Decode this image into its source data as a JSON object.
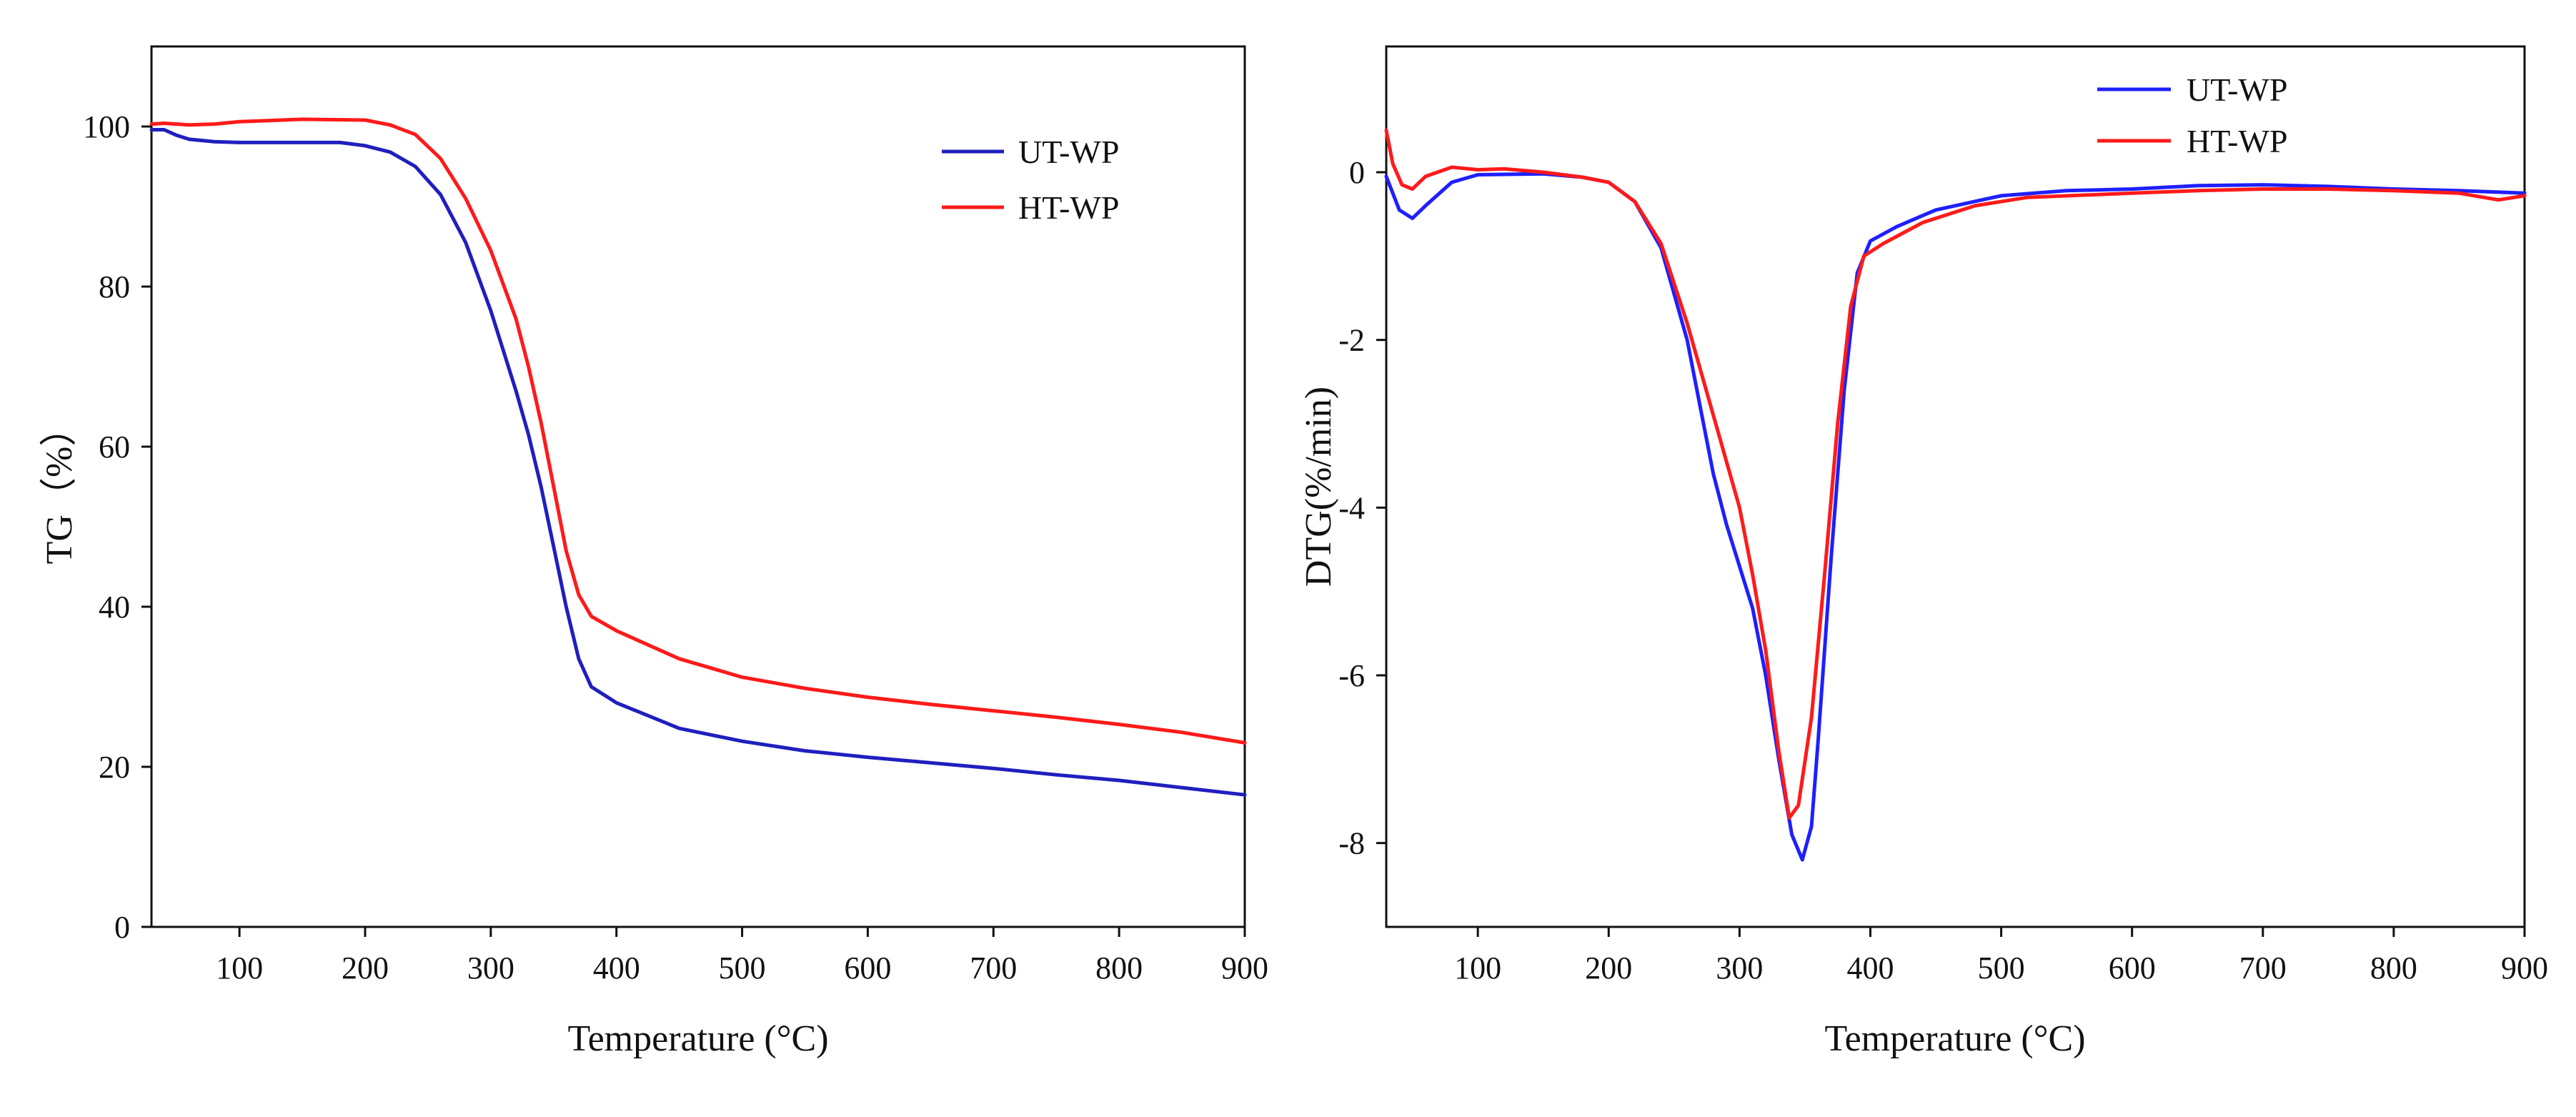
{
  "chart_data": [
    {
      "id": "tg",
      "type": "line",
      "xlabel": "Temperature (°C)",
      "ylabel": "TG（%）",
      "xlim": [
        30,
        900
      ],
      "ylim": [
        0,
        110
      ],
      "xticks": [
        100,
        200,
        300,
        400,
        500,
        600,
        700,
        800,
        900
      ],
      "xtick_labels": [
        "100",
        "200",
        "300",
        "400",
        "500",
        "600",
        "700",
        "800",
        "900"
      ],
      "yticks": [
        0,
        20,
        40,
        60,
        80,
        100
      ],
      "ytick_labels": [
        "0",
        "20",
        "40",
        "60",
        "80",
        "100"
      ],
      "grid": false,
      "legend_position": "top-right",
      "series": [
        {
          "name": "UT-WP",
          "color": "#1f1fbf",
          "points": [
            [
              30,
              99.6
            ],
            [
              40,
              99.6
            ],
            [
              50,
              98.9
            ],
            [
              60,
              98.4
            ],
            [
              80,
              98.1
            ],
            [
              100,
              98.0
            ],
            [
              150,
              98.0
            ],
            [
              180,
              98.0
            ],
            [
              200,
              97.6
            ],
            [
              220,
              96.8
            ],
            [
              240,
              95.0
            ],
            [
              260,
              91.5
            ],
            [
              280,
              85.5
            ],
            [
              300,
              77.0
            ],
            [
              320,
              67.0
            ],
            [
              330,
              61.5
            ],
            [
              340,
              55.0
            ],
            [
              350,
              47.5
            ],
            [
              360,
              40.0
            ],
            [
              370,
              33.5
            ],
            [
              380,
              30.0
            ],
            [
              400,
              28.0
            ],
            [
              450,
              24.8
            ],
            [
              500,
              23.2
            ],
            [
              550,
              22.0
            ],
            [
              600,
              21.2
            ],
            [
              650,
              20.5
            ],
            [
              700,
              19.8
            ],
            [
              750,
              19.0
            ],
            [
              800,
              18.3
            ],
            [
              850,
              17.4
            ],
            [
              900,
              16.5
            ]
          ]
        },
        {
          "name": "HT-WP",
          "color": "#ff1a1a",
          "points": [
            [
              30,
              100.3
            ],
            [
              40,
              100.4
            ],
            [
              60,
              100.2
            ],
            [
              80,
              100.3
            ],
            [
              100,
              100.6
            ],
            [
              150,
              100.9
            ],
            [
              200,
              100.8
            ],
            [
              220,
              100.2
            ],
            [
              240,
              99.0
            ],
            [
              260,
              96.0
            ],
            [
              280,
              91.0
            ],
            [
              300,
              84.5
            ],
            [
              320,
              76.0
            ],
            [
              330,
              70.0
            ],
            [
              340,
              63.0
            ],
            [
              350,
              55.0
            ],
            [
              360,
              47.0
            ],
            [
              370,
              41.5
            ],
            [
              380,
              38.8
            ],
            [
              400,
              37.0
            ],
            [
              450,
              33.5
            ],
            [
              500,
              31.2
            ],
            [
              550,
              29.8
            ],
            [
              600,
              28.7
            ],
            [
              650,
              27.8
            ],
            [
              700,
              27.0
            ],
            [
              750,
              26.2
            ],
            [
              800,
              25.3
            ],
            [
              850,
              24.3
            ],
            [
              900,
              23.0
            ]
          ]
        }
      ]
    },
    {
      "id": "dtg",
      "type": "line",
      "xlabel": "Temperature (°C)",
      "ylabel": "DTG(%/min)",
      "xlim": [
        30,
        900
      ],
      "ylim": [
        -9,
        1.5
      ],
      "xticks": [
        100,
        200,
        300,
        400,
        500,
        600,
        700,
        800,
        900
      ],
      "xtick_labels": [
        "100",
        "200",
        "300",
        "400",
        "500",
        "600",
        "700",
        "800",
        "900"
      ],
      "yticks": [
        0,
        -2,
        -4,
        -6,
        -8
      ],
      "ytick_labels": [
        "0",
        "-2",
        "-4",
        "-6",
        "-8"
      ],
      "grid": false,
      "legend_position": "top-right",
      "series": [
        {
          "name": "UT-WP",
          "color": "#1f1fff",
          "points": [
            [
              30,
              -0.05
            ],
            [
              40,
              -0.45
            ],
            [
              50,
              -0.55
            ],
            [
              60,
              -0.4
            ],
            [
              80,
              -0.12
            ],
            [
              100,
              -0.03
            ],
            [
              150,
              -0.02
            ],
            [
              180,
              -0.06
            ],
            [
              200,
              -0.12
            ],
            [
              220,
              -0.35
            ],
            [
              240,
              -0.9
            ],
            [
              260,
              -2.0
            ],
            [
              270,
              -2.8
            ],
            [
              280,
              -3.6
            ],
            [
              290,
              -4.2
            ],
            [
              300,
              -4.7
            ],
            [
              310,
              -5.2
            ],
            [
              320,
              -6.0
            ],
            [
              330,
              -7.0
            ],
            [
              340,
              -7.9
            ],
            [
              348,
              -8.2
            ],
            [
              355,
              -7.8
            ],
            [
              360,
              -6.8
            ],
            [
              370,
              -4.6
            ],
            [
              380,
              -2.6
            ],
            [
              390,
              -1.2
            ],
            [
              400,
              -0.82
            ],
            [
              420,
              -0.65
            ],
            [
              450,
              -0.45
            ],
            [
              500,
              -0.28
            ],
            [
              550,
              -0.22
            ],
            [
              600,
              -0.2
            ],
            [
              650,
              -0.16
            ],
            [
              700,
              -0.15
            ],
            [
              750,
              -0.17
            ],
            [
              800,
              -0.2
            ],
            [
              850,
              -0.22
            ],
            [
              900,
              -0.25
            ]
          ]
        },
        {
          "name": "HT-WP",
          "color": "#ff1a1a",
          "points": [
            [
              30,
              0.5
            ],
            [
              35,
              0.1
            ],
            [
              42,
              -0.15
            ],
            [
              50,
              -0.2
            ],
            [
              60,
              -0.05
            ],
            [
              80,
              0.06
            ],
            [
              100,
              0.03
            ],
            [
              120,
              0.04
            ],
            [
              150,
              0.0
            ],
            [
              180,
              -0.06
            ],
            [
              200,
              -0.12
            ],
            [
              220,
              -0.35
            ],
            [
              240,
              -0.85
            ],
            [
              260,
              -1.8
            ],
            [
              280,
              -2.9
            ],
            [
              300,
              -4.0
            ],
            [
              310,
              -4.8
            ],
            [
              320,
              -5.7
            ],
            [
              330,
              -6.9
            ],
            [
              338,
              -7.7
            ],
            [
              345,
              -7.55
            ],
            [
              355,
              -6.5
            ],
            [
              365,
              -4.8
            ],
            [
              375,
              -3.0
            ],
            [
              385,
              -1.6
            ],
            [
              395,
              -1.0
            ],
            [
              410,
              -0.85
            ],
            [
              440,
              -0.6
            ],
            [
              480,
              -0.4
            ],
            [
              520,
              -0.3
            ],
            [
              600,
              -0.25
            ],
            [
              650,
              -0.22
            ],
            [
              700,
              -0.2
            ],
            [
              750,
              -0.2
            ],
            [
              800,
              -0.22
            ],
            [
              850,
              -0.25
            ],
            [
              880,
              -0.33
            ],
            [
              900,
              -0.28
            ]
          ]
        }
      ]
    }
  ]
}
